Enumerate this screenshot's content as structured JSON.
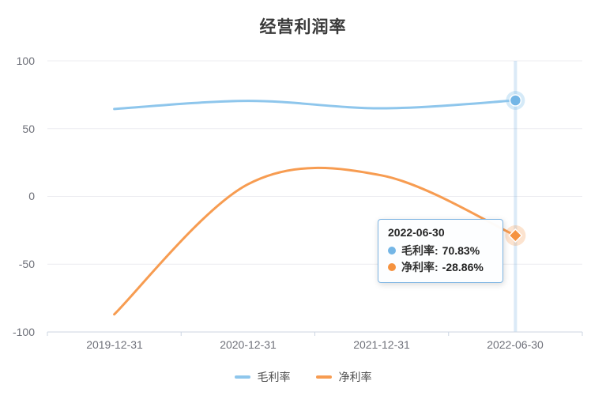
{
  "title": "经营利润率",
  "tooltip": {
    "date": "2022-06-30",
    "items": [
      {
        "label": "毛利率:",
        "value": "70.83%",
        "color": "#74b6e6"
      },
      {
        "label": "净利率:",
        "value": "-28.86%",
        "color": "#f5923f"
      }
    ]
  },
  "legend": [
    {
      "label": "毛利率",
      "color": "#8ec6ec"
    },
    {
      "label": "净利率",
      "color": "#f79c51"
    }
  ],
  "chart_data": {
    "type": "line",
    "title": "经营利润率",
    "categories": [
      "2019-12-31",
      "2020-12-31",
      "2021-12-31",
      "2022-06-30"
    ],
    "series": [
      {
        "name": "毛利率",
        "values": [
          64.5,
          70.5,
          65,
          70.83
        ],
        "color": "#8ec6ec",
        "point_color": "#74b6e6",
        "halo": "rgba(144,199,237,0.38)",
        "marker": "circle"
      },
      {
        "name": "净利率",
        "values": [
          -87,
          9,
          15.5,
          -28.86
        ],
        "color": "#f79c51",
        "point_color": "#f5923f",
        "halo": "rgba(246,156,83,0.28)",
        "marker": "diamond"
      }
    ],
    "y_ticks": [
      100,
      50,
      0,
      -50,
      -100
    ],
    "ylim": [
      -100,
      100
    ],
    "smooth": true,
    "grid": true,
    "legend_position": "bottom",
    "highlight_index": 3,
    "highlight_date": "2022-06-30",
    "colors": {
      "grid_line": "#ececf0",
      "axis_line": "#ccd5e2",
      "axis_pointer": "rgba(127,178,227,0.28)",
      "title_text": "#3a3a3a",
      "axis_label_text": "#6e7079"
    }
  }
}
